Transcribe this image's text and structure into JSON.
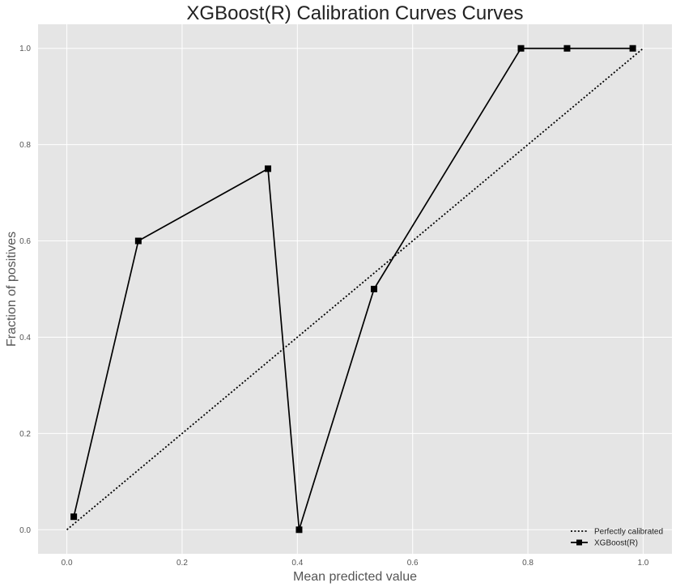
{
  "chart_data": {
    "type": "line",
    "title": "XGBoost(R) Calibration Curves Curves",
    "xlabel": "Mean predicted value",
    "ylabel": "Fraction of positives",
    "xlim": [
      -0.05,
      1.05
    ],
    "ylim": [
      -0.05,
      1.05
    ],
    "xticks": [
      "0.0",
      "0.2",
      "0.4",
      "0.6",
      "0.8",
      "1.0"
    ],
    "yticks": [
      "0.0",
      "0.2",
      "0.4",
      "0.6",
      "0.8",
      "1.0"
    ],
    "grid": true,
    "legend_position": "bottom-right",
    "series": [
      {
        "name": "Perfectly calibrated",
        "style": "dotted",
        "marker": "none",
        "color": "#000000",
        "x": [
          0.0,
          1.0
        ],
        "y": [
          0.0,
          1.0
        ]
      },
      {
        "name": "XGBoost(R)",
        "style": "solid",
        "marker": "square",
        "color": "#000000",
        "x": [
          0.012,
          0.124,
          0.349,
          0.403,
          0.533,
          0.788,
          0.868,
          0.982
        ],
        "y": [
          0.027,
          0.6,
          0.75,
          0.0,
          0.5,
          1.0,
          1.0,
          1.0
        ]
      }
    ],
    "colors": {
      "plot_background": "#e5e5e5",
      "grid": "#ffffff",
      "line": "#000000"
    }
  }
}
